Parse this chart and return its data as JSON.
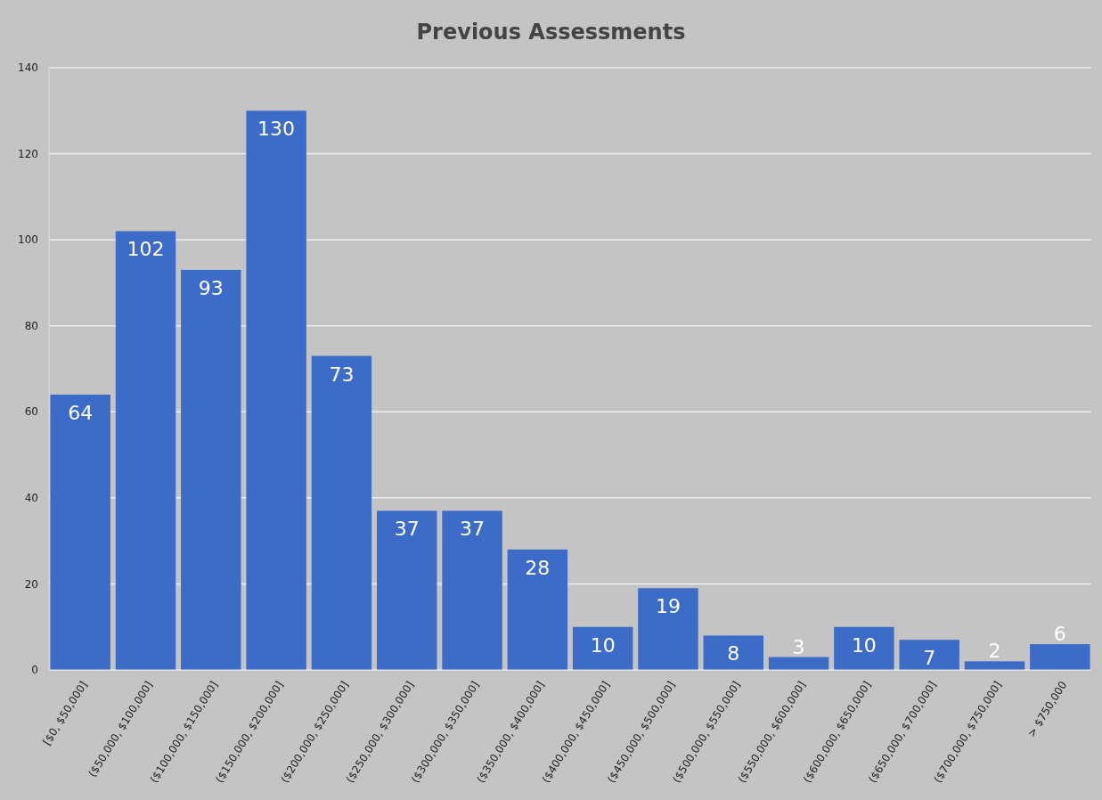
{
  "chart_data": {
    "type": "bar",
    "title": "Previous Assessments",
    "categories": [
      "[$0, $50,000]",
      "($50,000, $100,000]",
      "($100,000, $150,000]",
      "($150,000, $200,000]",
      "($200,000, $250,000]",
      "($250,000, $300,000]",
      "($300,000, $350,000]",
      "($350,000, $400,000]",
      "($400,000, $450,000]",
      "($450,000, $500,000]",
      "($500,000, $550,000]",
      "($550,000, $600,000]",
      "($600,000, $650,000]",
      "($650,000, $700,000]",
      "($700,000, $750,000]",
      "> $750,000"
    ],
    "values": [
      64,
      102,
      93,
      130,
      73,
      37,
      37,
      28,
      10,
      19,
      8,
      3,
      10,
      7,
      2,
      6
    ],
    "color": "#3d6cc8",
    "data_labels": true,
    "ylim": [
      0,
      140
    ],
    "yticks": [
      0,
      20,
      40,
      60,
      80,
      100,
      120,
      140
    ],
    "grid": "y"
  }
}
